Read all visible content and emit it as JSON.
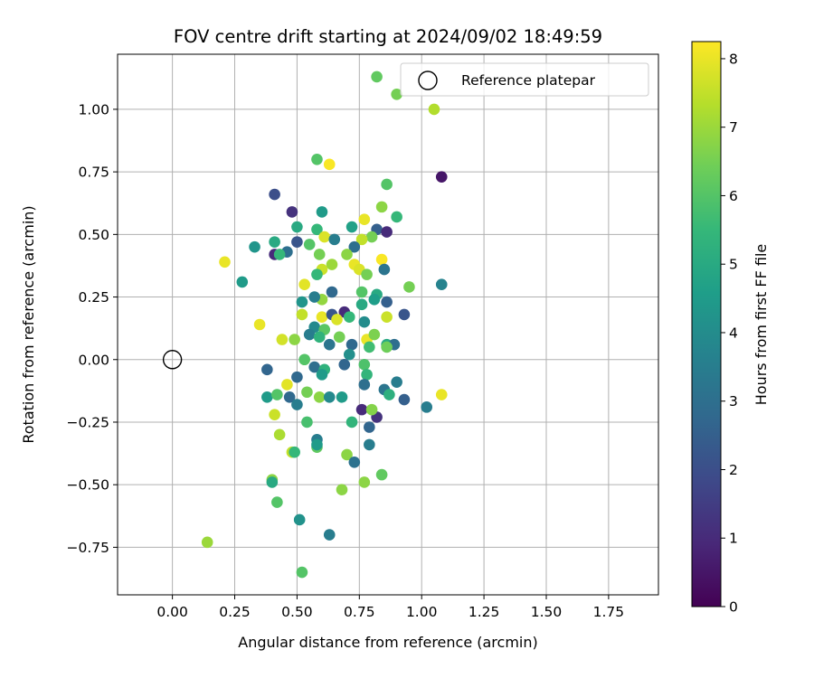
{
  "chart_data": {
    "type": "scatter",
    "title": "FOV centre drift starting at 2024/09/02 18:49:59",
    "xlabel": "Angular distance from reference (arcmin)",
    "ylabel": "Rotation from reference (arcmin)",
    "xlim": [
      -0.22,
      1.95
    ],
    "ylim": [
      -0.94,
      1.22
    ],
    "xticks": [
      "0.00",
      "0.25",
      "0.50",
      "0.75",
      "1.00",
      "1.25",
      "1.50",
      "1.75"
    ],
    "xtick_values": [
      0,
      0.25,
      0.5,
      0.75,
      1.0,
      1.25,
      1.5,
      1.75
    ],
    "yticks": [
      "−0.75",
      "−0.50",
      "−0.25",
      "0.00",
      "0.25",
      "0.50",
      "0.75",
      "1.00"
    ],
    "ytick_values": [
      -0.75,
      -0.5,
      -0.25,
      0,
      0.25,
      0.5,
      0.75,
      1.0
    ],
    "grid": true,
    "legend": {
      "placement": "top-right",
      "entries": [
        "Reference platepar"
      ]
    },
    "reference_point": {
      "x": 0.0,
      "y": 0.0
    },
    "colorbar": {
      "label": "Hours from first FF file",
      "range": [
        0,
        8.25
      ],
      "ticks": [
        "0",
        "1",
        "2",
        "3",
        "4",
        "5",
        "6",
        "7",
        "8"
      ],
      "tick_values": [
        0,
        1,
        2,
        3,
        4,
        5,
        6,
        7,
        8
      ],
      "colormap": "viridis",
      "colormap_stops": [
        "#440154",
        "#482878",
        "#3e4989",
        "#31688e",
        "#26828e",
        "#1f9e89",
        "#35b779",
        "#6ece58",
        "#b5de2b",
        "#fde725"
      ]
    },
    "points": [
      [
        0.82,
        1.13,
        6.2
      ],
      [
        0.9,
        1.06,
        6.5
      ],
      [
        1.05,
        1.0,
        7.3
      ],
      [
        0.58,
        0.8,
        6.0
      ],
      [
        0.63,
        0.78,
        8.2
      ],
      [
        1.08,
        0.73,
        0.5
      ],
      [
        0.86,
        0.7,
        6.0
      ],
      [
        0.41,
        0.66,
        2.0
      ],
      [
        0.48,
        0.59,
        1.2
      ],
      [
        0.6,
        0.59,
        4.5
      ],
      [
        0.84,
        0.61,
        6.8
      ],
      [
        0.9,
        0.57,
        5.5
      ],
      [
        0.77,
        0.56,
        8.0
      ],
      [
        0.5,
        0.53,
        5.0
      ],
      [
        0.58,
        0.52,
        5.5
      ],
      [
        0.72,
        0.53,
        4.7
      ],
      [
        0.82,
        0.52,
        2.5
      ],
      [
        0.86,
        0.51,
        1.0
      ],
      [
        0.61,
        0.49,
        7.8
      ],
      [
        0.65,
        0.48,
        3.5
      ],
      [
        0.8,
        0.49,
        6.5
      ],
      [
        0.76,
        0.48,
        7.5
      ],
      [
        0.55,
        0.46,
        6.0
      ],
      [
        0.33,
        0.45,
        4.3
      ],
      [
        0.41,
        0.47,
        5.0
      ],
      [
        0.5,
        0.47,
        2.2
      ],
      [
        0.73,
        0.45,
        3.0
      ],
      [
        0.46,
        0.43,
        3.0
      ],
      [
        0.41,
        0.42,
        1.0
      ],
      [
        0.43,
        0.42,
        5.5
      ],
      [
        0.59,
        0.42,
        6.5
      ],
      [
        0.7,
        0.42,
        6.8
      ],
      [
        0.21,
        0.39,
        8.0
      ],
      [
        0.64,
        0.38,
        7.0
      ],
      [
        0.73,
        0.38,
        8.0
      ],
      [
        0.84,
        0.4,
        8.2
      ],
      [
        0.6,
        0.36,
        7.6
      ],
      [
        0.75,
        0.36,
        7.8
      ],
      [
        0.58,
        0.34,
        5.5
      ],
      [
        0.78,
        0.34,
        6.5
      ],
      [
        0.85,
        0.36,
        3.2
      ],
      [
        0.28,
        0.31,
        4.5
      ],
      [
        0.53,
        0.3,
        7.9
      ],
      [
        0.64,
        0.27,
        2.8
      ],
      [
        0.76,
        0.27,
        6.0
      ],
      [
        0.82,
        0.26,
        5.0
      ],
      [
        0.95,
        0.29,
        6.5
      ],
      [
        1.08,
        0.3,
        3.7
      ],
      [
        0.52,
        0.23,
        4.3
      ],
      [
        0.6,
        0.24,
        6.9
      ],
      [
        0.57,
        0.25,
        3.5
      ],
      [
        0.76,
        0.22,
        5.0
      ],
      [
        0.81,
        0.24,
        4.6
      ],
      [
        0.86,
        0.23,
        2.5
      ],
      [
        0.69,
        0.19,
        1.0
      ],
      [
        0.52,
        0.18,
        7.5
      ],
      [
        0.6,
        0.17,
        8.0
      ],
      [
        0.35,
        0.14,
        8.0
      ],
      [
        0.64,
        0.18,
        2.2
      ],
      [
        0.66,
        0.16,
        7.8
      ],
      [
        0.71,
        0.17,
        5.5
      ],
      [
        0.77,
        0.15,
        4.0
      ],
      [
        0.86,
        0.17,
        7.6
      ],
      [
        0.93,
        0.18,
        2.2
      ],
      [
        0.57,
        0.13,
        3.9
      ],
      [
        0.55,
        0.1,
        3.5
      ],
      [
        0.61,
        0.12,
        6.1
      ],
      [
        0.67,
        0.09,
        6.5
      ],
      [
        0.72,
        0.06,
        2.8
      ],
      [
        0.78,
        0.08,
        8.0
      ],
      [
        0.81,
        0.1,
        6.6
      ],
      [
        0.86,
        0.06,
        5.0
      ],
      [
        0.89,
        0.06,
        3.0
      ],
      [
        0.44,
        0.08,
        7.7
      ],
      [
        0.49,
        0.08,
        6.8
      ],
      [
        0.59,
        0.09,
        5.3
      ],
      [
        0.63,
        0.06,
        3.2
      ],
      [
        0.71,
        0.02,
        4.1
      ],
      [
        0.79,
        0.05,
        5.7
      ],
      [
        0.86,
        0.05,
        6.4
      ],
      [
        0.53,
        0.0,
        6.0
      ],
      [
        0.57,
        -0.03,
        3.0
      ],
      [
        0.61,
        -0.04,
        5.3
      ],
      [
        0.69,
        -0.02,
        2.7
      ],
      [
        0.77,
        -0.02,
        5.9
      ],
      [
        0.38,
        -0.04,
        2.7
      ],
      [
        0.5,
        -0.07,
        2.8
      ],
      [
        0.6,
        -0.06,
        4.5
      ],
      [
        0.78,
        -0.06,
        5.4
      ],
      [
        0.46,
        -0.1,
        7.9
      ],
      [
        0.77,
        -0.1,
        3.0
      ],
      [
        0.85,
        -0.12,
        3.2
      ],
      [
        0.87,
        -0.14,
        5.2
      ],
      [
        0.9,
        -0.09,
        3.5
      ],
      [
        0.38,
        -0.15,
        4.5
      ],
      [
        0.42,
        -0.14,
        6.0
      ],
      [
        0.47,
        -0.15,
        2.8
      ],
      [
        0.5,
        -0.18,
        3.5
      ],
      [
        0.54,
        -0.13,
        6.5
      ],
      [
        0.59,
        -0.15,
        6.8
      ],
      [
        0.63,
        -0.15,
        3.9
      ],
      [
        0.68,
        -0.15,
        4.5
      ],
      [
        0.76,
        -0.2,
        1.0
      ],
      [
        0.82,
        -0.23,
        1.2
      ],
      [
        0.93,
        -0.16,
        2.5
      ],
      [
        1.02,
        -0.19,
        3.5
      ],
      [
        1.08,
        -0.14,
        8.0
      ],
      [
        0.41,
        -0.22,
        7.6
      ],
      [
        0.54,
        -0.25,
        5.8
      ],
      [
        0.72,
        -0.25,
        5.4
      ],
      [
        0.79,
        -0.27,
        2.7
      ],
      [
        0.8,
        -0.2,
        6.7
      ],
      [
        0.43,
        -0.3,
        7.2
      ],
      [
        0.58,
        -0.32,
        3.5
      ],
      [
        0.48,
        -0.37,
        7.5
      ],
      [
        0.49,
        -0.37,
        5.5
      ],
      [
        0.58,
        -0.35,
        6.2
      ],
      [
        0.58,
        -0.34,
        4.5
      ],
      [
        0.79,
        -0.34,
        3.5
      ],
      [
        0.7,
        -0.38,
        6.8
      ],
      [
        0.73,
        -0.41,
        3.1
      ],
      [
        0.4,
        -0.48,
        6.8
      ],
      [
        0.4,
        -0.49,
        5.0
      ],
      [
        0.77,
        -0.49,
        6.8
      ],
      [
        0.84,
        -0.46,
        6.2
      ],
      [
        0.68,
        -0.52,
        6.8
      ],
      [
        0.42,
        -0.57,
        6.0
      ],
      [
        0.51,
        -0.64,
        4.2
      ],
      [
        0.63,
        -0.7,
        3.5
      ],
      [
        0.14,
        -0.73,
        7.0
      ],
      [
        0.52,
        -0.85,
        6.0
      ]
    ]
  }
}
